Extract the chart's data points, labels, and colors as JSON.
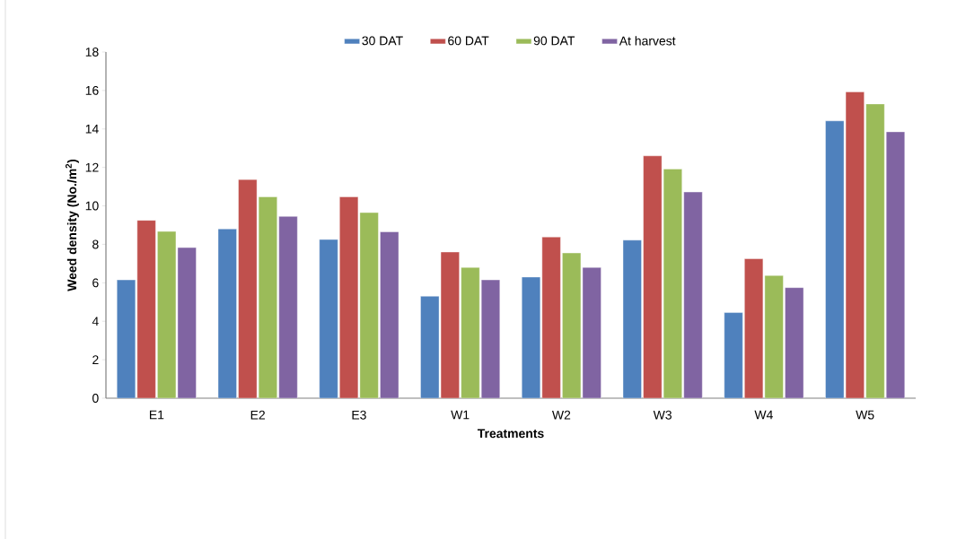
{
  "chart_data": {
    "type": "bar",
    "xlabel": "Treatments",
    "ylabel": "Weed density (No./m$^{2}$)",
    "categories": [
      "E1",
      "E2",
      "E3",
      "W1",
      "W2",
      "W3",
      "W4",
      "W5"
    ],
    "series": [
      {
        "name": "30 DAT",
        "color": "#4f81bd",
        "values": [
          6.15,
          8.8,
          8.25,
          5.3,
          6.3,
          8.22,
          4.45,
          14.42
        ]
      },
      {
        "name": "60 DAT",
        "color": "#c0504d",
        "values": [
          9.25,
          11.37,
          10.47,
          7.6,
          8.38,
          12.6,
          7.25,
          15.93
        ]
      },
      {
        "name": "90 DAT",
        "color": "#9bbb59",
        "values": [
          8.67,
          10.47,
          9.65,
          6.8,
          7.55,
          11.92,
          6.38,
          15.3
        ]
      },
      {
        "name": "At harvest",
        "color": "#8064a2",
        "values": [
          7.83,
          9.45,
          8.65,
          6.15,
          6.8,
          10.72,
          5.75,
          13.85
        ]
      }
    ],
    "ylim": [
      0,
      18
    ],
    "yticks": [
      0,
      2,
      4,
      6,
      8,
      10,
      12,
      14,
      16,
      18
    ],
    "grid": false,
    "legend": "top"
  }
}
